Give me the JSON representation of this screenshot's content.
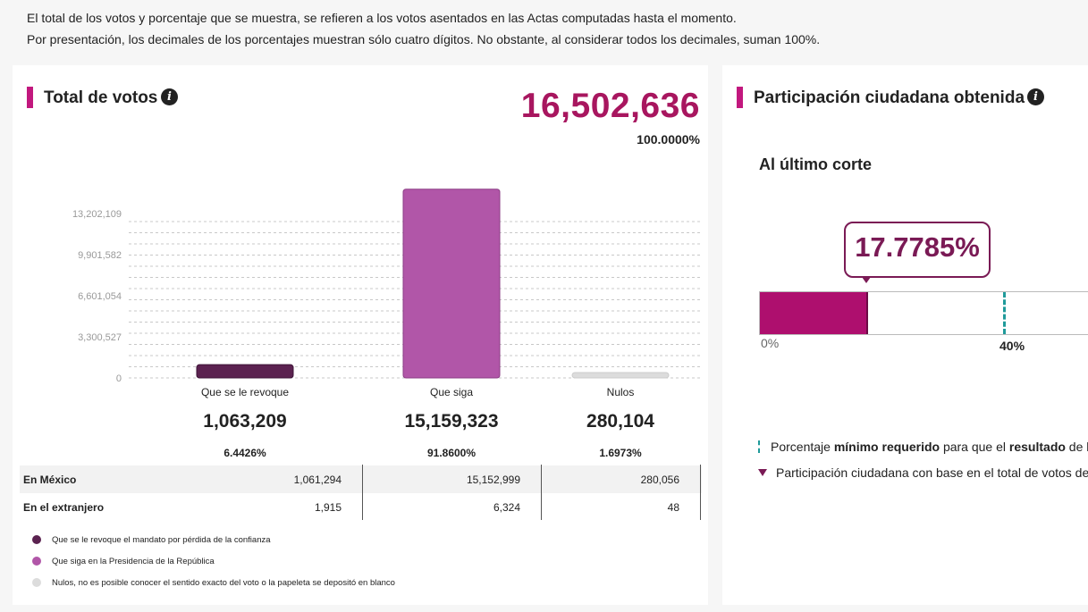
{
  "notes": {
    "line1": "El total de los votos y porcentaje que se muestra, se refieren a los votos asentados en las Actas computadas hasta el momento.",
    "line2": "Por presentación, los decimales de los porcentajes muestran sólo cuatro dígitos. No obstante, al considerar todos los decimales, suman 100%."
  },
  "total_section": {
    "title": "Total de votos",
    "total_value": "16,502,636",
    "total_pct": "100.0000%",
    "info_icon": "info-icon"
  },
  "chart_data": {
    "type": "bar",
    "categories": [
      "Que se le revoque",
      "Que siga",
      "Nulos"
    ],
    "values": [
      1063209,
      15159323,
      280104
    ],
    "value_labels": [
      "1,063,209",
      "15,159,323",
      "280,104"
    ],
    "pct_labels": [
      "6.4426%",
      "91.8600%",
      "1.6973%"
    ],
    "colors": [
      "#5b2250",
      "#b156a8",
      "#dcdcdc"
    ],
    "border_colors": [
      "#3d1537",
      "#8c3e86",
      "#cccccc"
    ],
    "yticks": [
      0,
      3300527,
      6601054,
      9901582,
      13202109
    ],
    "ytick_labels": [
      "0",
      "3,300,527",
      "6,601,054",
      "9,901,582",
      "13,202,109"
    ],
    "ylim": [
      0,
      16502636
    ],
    "grid": true
  },
  "breakdown": {
    "rows": [
      {
        "label": "En México",
        "values": [
          "1,061,294",
          "15,152,999",
          "280,056"
        ]
      },
      {
        "label": "En el extranjero",
        "values": [
          "1,915",
          "6,324",
          "48"
        ]
      }
    ]
  },
  "legend": [
    {
      "text": "Que se le revoque el mandato por pérdida de la confianza",
      "color": "#5b2250"
    },
    {
      "text": "Que siga en la Presidencia de la República",
      "color": "#b156a8"
    },
    {
      "text": "Nulos, no es posible conocer el sentido exacto del voto o la papeleta se depositó en blanco",
      "color": "#dcdcdc"
    }
  ],
  "participation": {
    "title": "Participación ciudadana obtenida",
    "subtitle": "Al último corte",
    "value_label": "17.7785%",
    "value": 17.7785,
    "threshold": 40,
    "min_label": "0%",
    "threshold_label": "40%",
    "accent_color": "#ae0f6e",
    "threshold_color": "#1f9a9a",
    "note1": {
      "p1": "Porcentaje ",
      "b1": "mínimo requerido",
      "p2": " para que el ",
      "b2": "resultado",
      "p3": " de la"
    },
    "note2": "Participación ciudadana con base en el total de votos de"
  }
}
